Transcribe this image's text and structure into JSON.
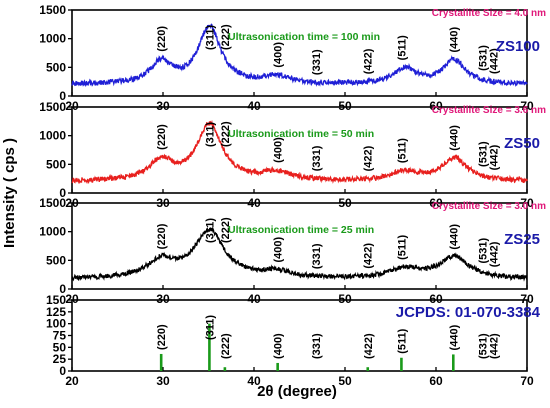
{
  "chart_data": {
    "type": "line",
    "xlabel": "2θ (degree)",
    "ylabel": "Intensity ( cps )",
    "xlim": [
      20,
      70
    ],
    "xticks": [
      "20",
      "30",
      "40",
      "50",
      "60",
      "70"
    ],
    "colors": {
      "ZS100": "#1f1fd6",
      "ZS50": "#e8201e",
      "ZS25": "#000000",
      "reference": "#1a9a1a",
      "note_green": "#1a9a1a",
      "note_pink": "#e0197a",
      "sample_label": "#1a1aa8"
    },
    "panels": [
      {
        "sample": "ZS100",
        "note": "Ultrasonication time = 100 min",
        "crystallite": "Crystallite Size = 4.0 nm",
        "ylim": [
          0,
          1500
        ],
        "yticks": [
          "0",
          "500",
          "1000",
          "1500"
        ],
        "baseline": 200,
        "noise": 45,
        "peaks": [
          {
            "x": 29.8,
            "height": 380,
            "width": 1.4
          },
          {
            "x": 35.1,
            "height": 1000,
            "width": 1.5
          },
          {
            "x": 42.5,
            "height": 130,
            "width": 1.6
          },
          {
            "x": 56.6,
            "height": 270,
            "width": 1.5
          },
          {
            "x": 62.0,
            "height": 420,
            "width": 1.5
          }
        ]
      },
      {
        "sample": "ZS50",
        "note": "Ultrasonication time = 50 min",
        "crystallite": "Crystallite Size = 3.6 nm",
        "ylim": [
          0,
          1500
        ],
        "yticks": [
          "0",
          "500",
          "1000",
          "1500"
        ],
        "baseline": 200,
        "noise": 45,
        "peaks": [
          {
            "x": 29.8,
            "height": 340,
            "width": 1.6
          },
          {
            "x": 35.1,
            "height": 980,
            "width": 1.7
          },
          {
            "x": 42.5,
            "height": 150,
            "width": 1.8
          },
          {
            "x": 56.6,
            "height": 160,
            "width": 1.8
          },
          {
            "x": 62.0,
            "height": 400,
            "width": 1.7
          }
        ]
      },
      {
        "sample": "ZS25",
        "note": "Ultrasonication time = 25 min",
        "crystallite": "Crystallite Size = 3.0 nm",
        "ylim": [
          0,
          1500
        ],
        "yticks": [
          "0",
          "500",
          "1000",
          "1500"
        ],
        "baseline": 170,
        "noise": 40,
        "peaks": [
          {
            "x": 29.8,
            "height": 300,
            "width": 1.9
          },
          {
            "x": 35.1,
            "height": 830,
            "width": 2.0
          },
          {
            "x": 42.5,
            "height": 110,
            "width": 2.0
          },
          {
            "x": 56.6,
            "height": 170,
            "width": 2.0
          },
          {
            "x": 62.0,
            "height": 380,
            "width": 2.0
          }
        ]
      }
    ],
    "reference": {
      "label": "JCPDS: 01-070-3384",
      "ylim": [
        0,
        150
      ],
      "yticks": [
        "0",
        "25",
        "50",
        "75",
        "100",
        "125",
        "150"
      ],
      "sticks": [
        {
          "x": 29.8,
          "value": 36
        },
        {
          "x": 35.1,
          "value": 100
        },
        {
          "x": 36.8,
          "value": 8
        },
        {
          "x": 42.6,
          "value": 17
        },
        {
          "x": 52.5,
          "value": 8
        },
        {
          "x": 56.2,
          "value": 28
        },
        {
          "x": 61.9,
          "value": 35
        }
      ]
    },
    "peak_labels": [
      {
        "x": 29.8,
        "text": "(220)"
      },
      {
        "x": 35.1,
        "text": "(311)"
      },
      {
        "x": 36.8,
        "text": "(222)"
      },
      {
        "x": 42.6,
        "text": "(400)"
      },
      {
        "x": 46.8,
        "text": "(331)"
      },
      {
        "x": 52.5,
        "text": "(422)"
      },
      {
        "x": 56.2,
        "text": "(511)"
      },
      {
        "x": 61.9,
        "text": "(440)"
      },
      {
        "x": 65.1,
        "text": "(531)"
      },
      {
        "x": 66.3,
        "text": "(442)"
      }
    ]
  }
}
